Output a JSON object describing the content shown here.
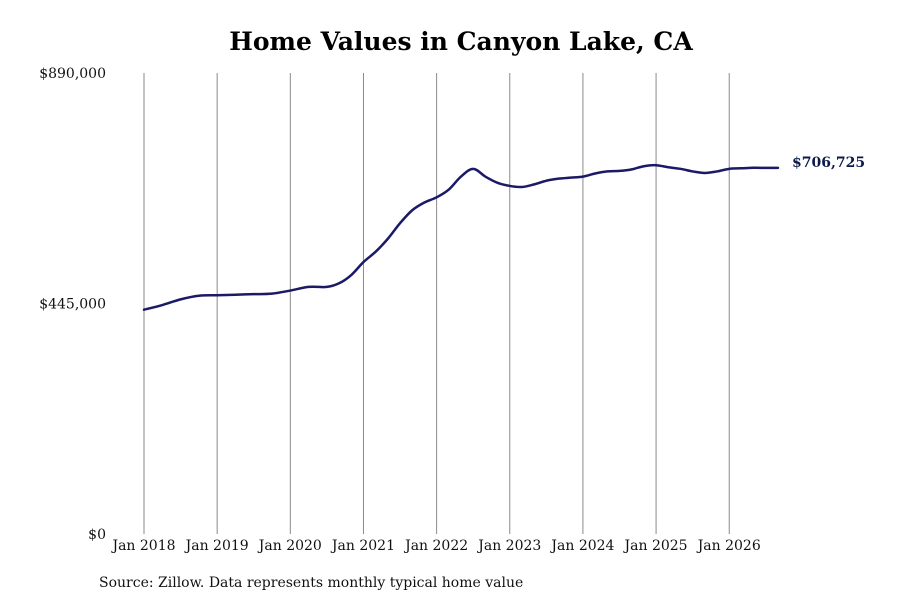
{
  "chart_data": {
    "type": "line",
    "title": "Home Values in Canyon Lake, CA",
    "xlabel": "",
    "ylabel": "",
    "x_ticks": [
      "Jan 2018",
      "Jan 2019",
      "Jan 2020",
      "Jan 2021",
      "Jan 2022",
      "Jan 2023",
      "Jan 2024",
      "Jan 2025",
      "Jan 2026"
    ],
    "y_ticks": [
      {
        "value": 0,
        "label": "$0"
      },
      {
        "value": 445000,
        "label": "$445,000"
      },
      {
        "value": 890000,
        "label": "$890,000"
      }
    ],
    "xlim": [
      "2018-01",
      "2026-09"
    ],
    "ylim": [
      0,
      890000
    ],
    "grid": "vertical",
    "line_color": "#1a1a66",
    "end_label": "$706,725",
    "series": [
      {
        "x": [
          "2018-01",
          "2018-04",
          "2018-07",
          "2018-10",
          "2019-01",
          "2019-04",
          "2019-07",
          "2019-10",
          "2020-01",
          "2020-04",
          "2020-07",
          "2020-09",
          "2020-11",
          "2021-01",
          "2021-03",
          "2021-05",
          "2021-07",
          "2021-09",
          "2021-11",
          "2022-01",
          "2022-03",
          "2022-05",
          "2022-07",
          "2022-09",
          "2022-11",
          "2023-01",
          "2023-03",
          "2023-05",
          "2023-07",
          "2023-09",
          "2023-11",
          "2024-01",
          "2024-03",
          "2024-05",
          "2024-07",
          "2024-09",
          "2024-11",
          "2025-01",
          "2025-03",
          "2025-05",
          "2025-07",
          "2025-09",
          "2025-11",
          "2026-01",
          "2026-03",
          "2026-05",
          "2026-07",
          "2026-09"
        ],
        "values": [
          433000,
          442000,
          453000,
          460000,
          461000,
          462000,
          463000,
          464000,
          470000,
          477000,
          477000,
          484000,
          500000,
          525000,
          545000,
          570000,
          600000,
          625000,
          640000,
          650000,
          665000,
          690000,
          705000,
          690000,
          678000,
          672000,
          670000,
          675000,
          682000,
          686000,
          688000,
          690000,
          696000,
          700000,
          701000,
          704000,
          710000,
          712000,
          708000,
          705000,
          700000,
          697000,
          700000,
          705000,
          706000,
          707000,
          706800,
          706725
        ]
      }
    ],
    "source_note": "Source: Zillow. Data represents monthly typical home value"
  }
}
